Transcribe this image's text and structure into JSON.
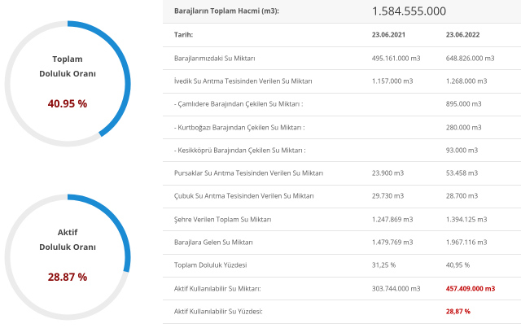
{
  "gauges": [
    {
      "title": "Toplam",
      "subtitle": "Doluluk Oranı",
      "value": 40.95,
      "value_label": "40.95 %"
    },
    {
      "title": "Aktif",
      "subtitle": "Doluluk Oranı",
      "value": 28.87,
      "value_label": "28.87 %"
    }
  ],
  "colors": {
    "arc": "#1b8bd4",
    "track": "#ececec",
    "value_text": "#8b0a0a",
    "highlight": "#c00000"
  },
  "table": {
    "title": {
      "label": "Barajların Toplam Hacmi (m3):",
      "value": "1.584.555.000"
    },
    "header": [
      "Tarih:",
      "23.06.2021",
      "23.06.2022"
    ],
    "rows": [
      [
        "Barajlarımızdaki Su Miktarı",
        "495.161.000 m3",
        "648.826.000 m3"
      ],
      [
        "İvedik Su Arıtma Tesisinden Verilen Su Miktarı",
        "1.157.000 m3",
        "1.268.000 m3"
      ],
      [
        "- Çamlıdere Barajından Çekilen Su Miktarı :",
        "",
        "895.000 m3"
      ],
      [
        "- Kurtboğazı Barajından Çekilen Su Miktarı :",
        "",
        "280.000 m3"
      ],
      [
        "- Kesikköprü Barajından Çekilen Su Miktarı :",
        "",
        "93.000 m3"
      ],
      [
        "Pursaklar Su Arıtma Tesisinden Verilen Su Miktarı",
        "23.900 m3",
        "53.458 m3"
      ],
      [
        "Çubuk Su Arıtma Tesisinden Verilen Su Miktarı",
        "29.730 m3",
        "28.700 m3"
      ],
      [
        "Şehre Verilen Toplam Su Miktarı",
        "1.247.869 m3",
        "1.394.125 m3"
      ],
      [
        "Barajlara Gelen Su Miktarı",
        "1.479.769 m3",
        "1.967.116 m3"
      ],
      [
        "Toplam Doluluk Yüzdesi",
        "31,25 %",
        "40,95 %"
      ],
      [
        "Aktif Kullanılabilir Su Miktarı:",
        "303.744.000 m3",
        "457.409.000 m3"
      ],
      [
        "Aktif Kullanılabilir Su Yüzdesi:",
        "",
        "28,87 %"
      ]
    ],
    "highlighted_rows": [
      10,
      11
    ]
  }
}
